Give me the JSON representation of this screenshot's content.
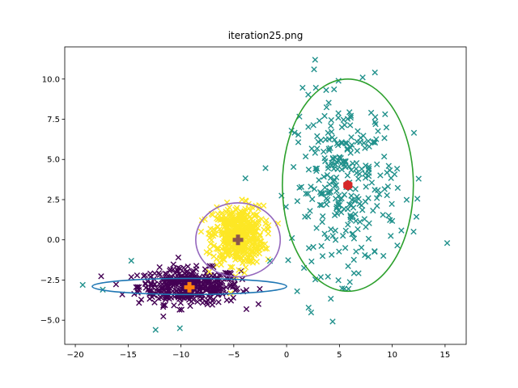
{
  "chart_data": {
    "type": "scatter",
    "title": "iteration25.png",
    "xlabel": "",
    "ylabel": "",
    "xlim": [
      -21,
      17
    ],
    "ylim": [
      -6.5,
      12
    ],
    "xticks": [
      -20,
      -15,
      -10,
      -5,
      0,
      5,
      10,
      15
    ],
    "yticks": [
      -5.0,
      -2.5,
      0.0,
      2.5,
      5.0,
      7.5,
      10.0
    ],
    "xtick_labels": [
      "−20",
      "−15",
      "−10",
      "−5",
      "0",
      "5",
      "10",
      "15"
    ],
    "ytick_labels": [
      "−5.0",
      "−2.5",
      "0.0",
      "2.5",
      "5.0",
      "7.5",
      "10.0"
    ],
    "grid": false,
    "colors": {
      "purple_cluster": "#440154",
      "yellow_cluster": "#fde725",
      "teal_cluster": "#21918c",
      "ellipse_blue": "#1f77b4",
      "ellipse_purple": "#9467bd",
      "ellipse_green": "#2ca02c",
      "center_orange": "#ff7f0e",
      "center_brown": "#8c564b",
      "center_red": "#d62728"
    },
    "clusters": [
      {
        "color": "#440154",
        "count": 420,
        "center": [
          -9.2,
          -2.9
        ],
        "spread": [
          2.4,
          0.55
        ],
        "marker": "x"
      },
      {
        "color": "#fde725",
        "count": 520,
        "center": [
          -4.6,
          0.3
        ],
        "spread": [
          1.2,
          0.9
        ],
        "marker": "x"
      },
      {
        "color": "#21918c",
        "count": 300,
        "center": [
          5.5,
          3.4
        ],
        "spread": [
          2.5,
          2.7
        ],
        "marker": "x"
      }
    ],
    "outliers": [
      {
        "color": "#21918c",
        "points": [
          [
            2.7,
            11.2
          ],
          [
            2.6,
            10.6
          ],
          [
            7.2,
            10.1
          ],
          [
            15.2,
            -0.2
          ],
          [
            12.5,
            3.8
          ],
          [
            1.0,
            -3.2
          ],
          [
            -19.3,
            -2.8
          ],
          [
            -17.4,
            -3.1
          ],
          [
            -12.4,
            -5.6
          ],
          [
            -10.1,
            -5.5
          ],
          [
            -14.7,
            -1.3
          ]
        ]
      }
    ],
    "ellipses": [
      {
        "color": "#1f77b4",
        "center": [
          -9.2,
          -2.9
        ],
        "rx": 9.2,
        "ry": 0.5
      },
      {
        "color": "#9467bd",
        "center": [
          -4.6,
          0.0
        ],
        "rx": 4.0,
        "ry": 2.3
      },
      {
        "color": "#2ca02c",
        "center": [
          5.8,
          3.4
        ],
        "rx": 6.2,
        "ry": 6.6
      }
    ],
    "centers": [
      {
        "color": "#ff7f0e",
        "shape": "plus",
        "point": [
          -9.2,
          -2.95
        ]
      },
      {
        "color": "#8c564b",
        "shape": "plus",
        "point": [
          -4.6,
          0.0
        ]
      },
      {
        "color": "#d62728",
        "shape": "hexagon",
        "point": [
          5.8,
          3.4
        ]
      }
    ]
  }
}
